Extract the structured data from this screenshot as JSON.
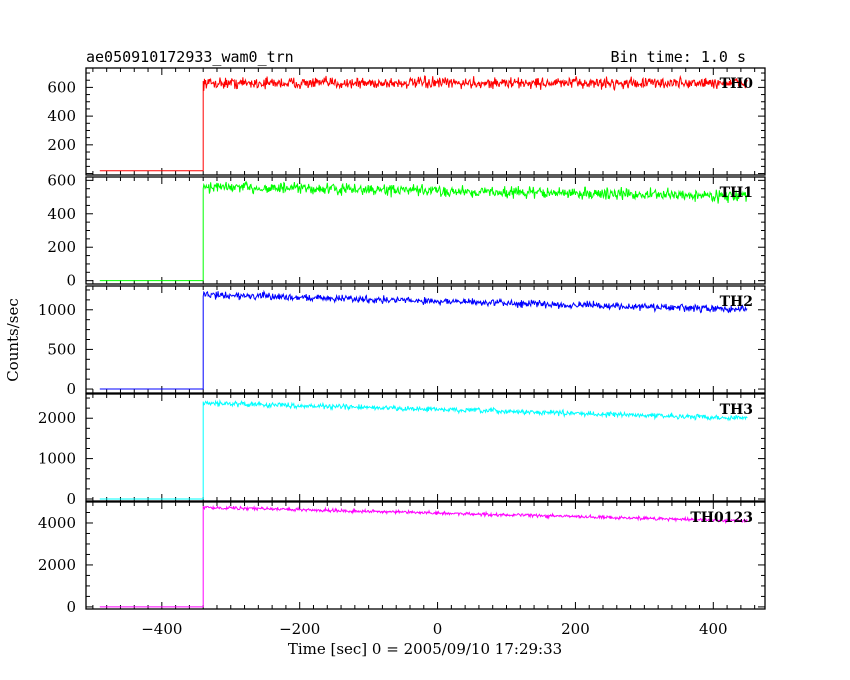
{
  "header": {
    "title": "ae050910172933_wam0_trn",
    "bin_time": "Bin time: 1.0 s"
  },
  "chart_data": {
    "type": "line",
    "xlabel": "Time [sec] 0 = 2005/09/10 17:29:33",
    "ylabel": "Counts/sec",
    "xlim": [
      -510,
      475
    ],
    "xticks": [
      -400,
      -200,
      0,
      200,
      400
    ],
    "xtick_labels": [
      "−400",
      "−200",
      "0",
      "200",
      "400"
    ],
    "data_start": -490,
    "data_end": 450,
    "onset": -340,
    "panels": [
      {
        "name": "TH0",
        "color": "#ff0000",
        "ylim": [
          -10,
          735
        ],
        "yticks": [
          0,
          200,
          400,
          600
        ],
        "ytick_labels": [
          "",
          "200",
          "400",
          "600"
        ],
        "baseline": 20,
        "start_level": 630,
        "end_level": 630,
        "noise": 35
      },
      {
        "name": "TH1",
        "color": "#00ff00",
        "ylim": [
          -20,
          620
        ],
        "yticks": [
          0,
          200,
          400,
          600
        ],
        "ytick_labels": [
          "0",
          "200",
          "400",
          "600"
        ],
        "baseline": 0,
        "start_level": 560,
        "end_level": 505,
        "noise": 30
      },
      {
        "name": "TH2",
        "color": "#0000ff",
        "ylim": [
          -50,
          1300
        ],
        "yticks": [
          0,
          500,
          1000
        ],
        "ytick_labels": [
          "0",
          "500",
          "1000"
        ],
        "baseline": 0,
        "start_level": 1190,
        "end_level": 1000,
        "noise": 40
      },
      {
        "name": "TH3",
        "color": "#00ffff",
        "ylim": [
          -50,
          2600
        ],
        "yticks": [
          0,
          1000,
          2000
        ],
        "ytick_labels": [
          "0",
          "1000",
          "2000"
        ],
        "baseline": 0,
        "start_level": 2380,
        "end_level": 2000,
        "noise": 55
      },
      {
        "name": "TH0123",
        "color": "#ff00ff",
        "ylim": [
          -100,
          5000
        ],
        "yticks": [
          0,
          2000,
          4000
        ],
        "ytick_labels": [
          "0",
          "2000",
          "4000"
        ],
        "baseline": 0,
        "start_level": 4750,
        "end_level": 4100,
        "noise": 70
      }
    ]
  }
}
